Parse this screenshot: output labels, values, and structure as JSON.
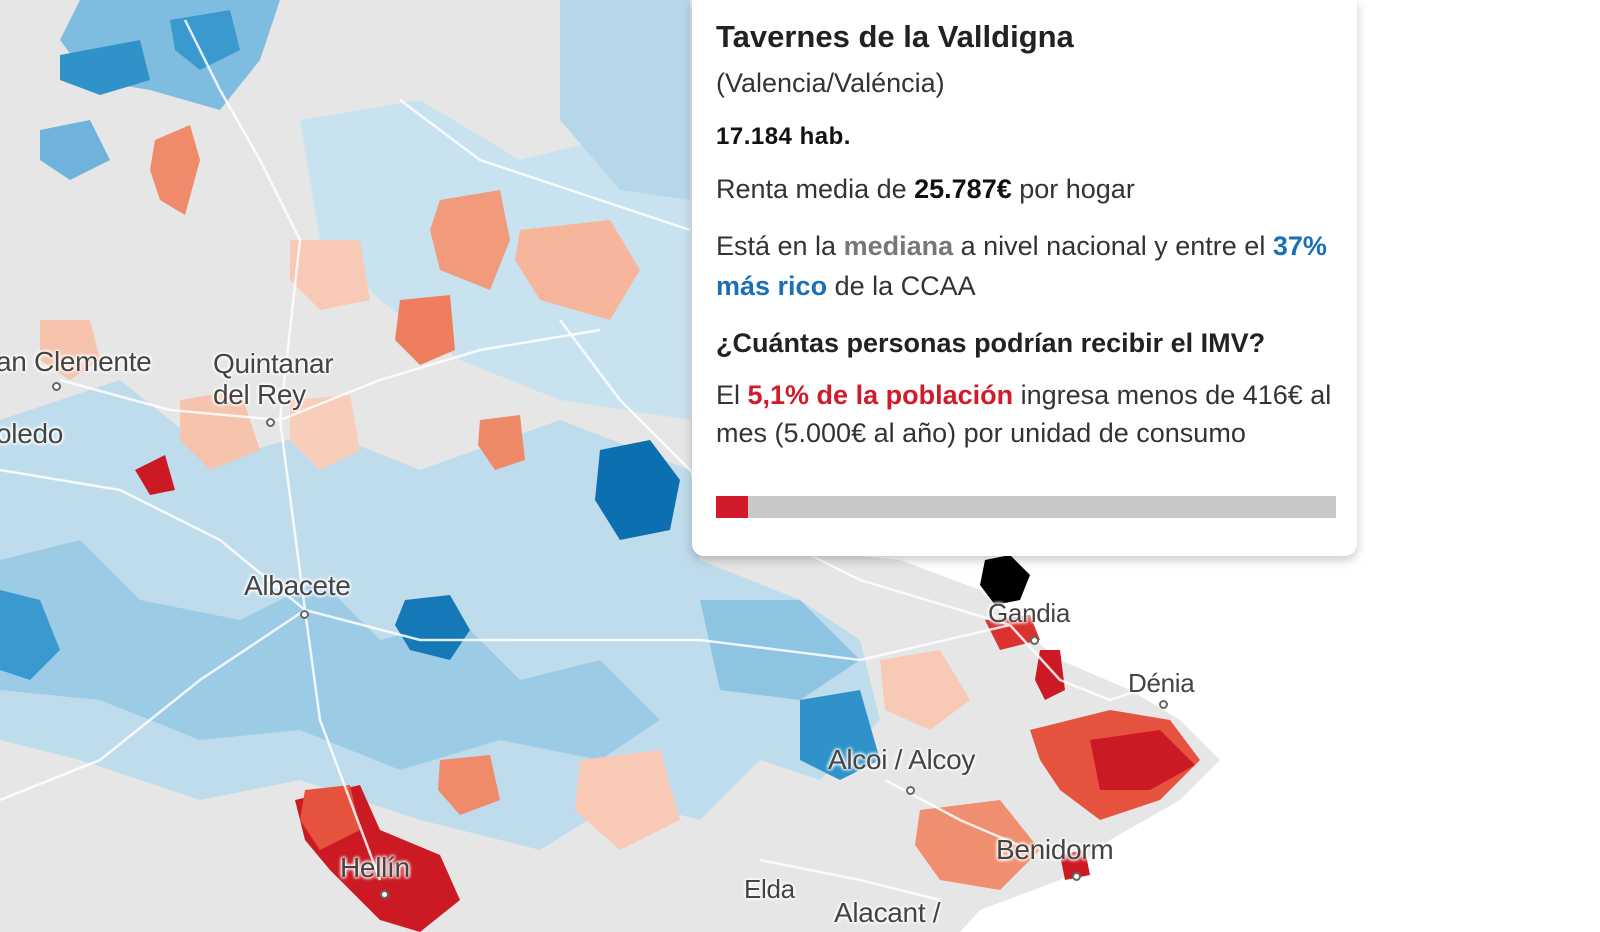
{
  "tooltip": {
    "municipality": "Tavernes de la Valldigna",
    "province": "(Valencia/Valéncia)",
    "population": "17.184 hab.",
    "income_prefix": "Renta media de ",
    "income_value": "25.787€",
    "income_suffix": " por hogar",
    "rank_prefix": "Está en la ",
    "rank_national": "mediana",
    "rank_mid": " a nivel nacional y entre el ",
    "rank_regional": "37% más rico",
    "rank_suffix": " de la CCAA",
    "question": "¿Cuántas personas podrían recibir el IMV?",
    "imv_prefix": "El ",
    "imv_share": "5,1% de la población",
    "imv_suffix": " ingresa menos de 416€ al mes (5.000€ al año) por unidad de consumo",
    "imv_bar_fraction": 0.051
  },
  "map": {
    "cities": [
      "an Clemente",
      "Quintanar del Rey",
      "oledo",
      "Albacete",
      "Gandia",
      "Dénia",
      "Alcoi / Alcoy",
      "Hellín",
      "Benidorm",
      "Elda",
      "Alacant /"
    ],
    "colors": {
      "background": "#e6e6e6",
      "sea": "#ffffff",
      "light_blue": "#bfdcec",
      "mid_blue": "#8cc4e2",
      "dark_blue": "#2f93c9",
      "deep_blue": "#0b6fb0",
      "light_red": "#f6c3ad",
      "mid_red": "#f19a7c",
      "strong_red": "#e5533f",
      "deep_red": "#cc1a24",
      "selected": "#000000",
      "accent_red": "#d11a2a",
      "accent_blue": "#1a6fb5"
    }
  }
}
